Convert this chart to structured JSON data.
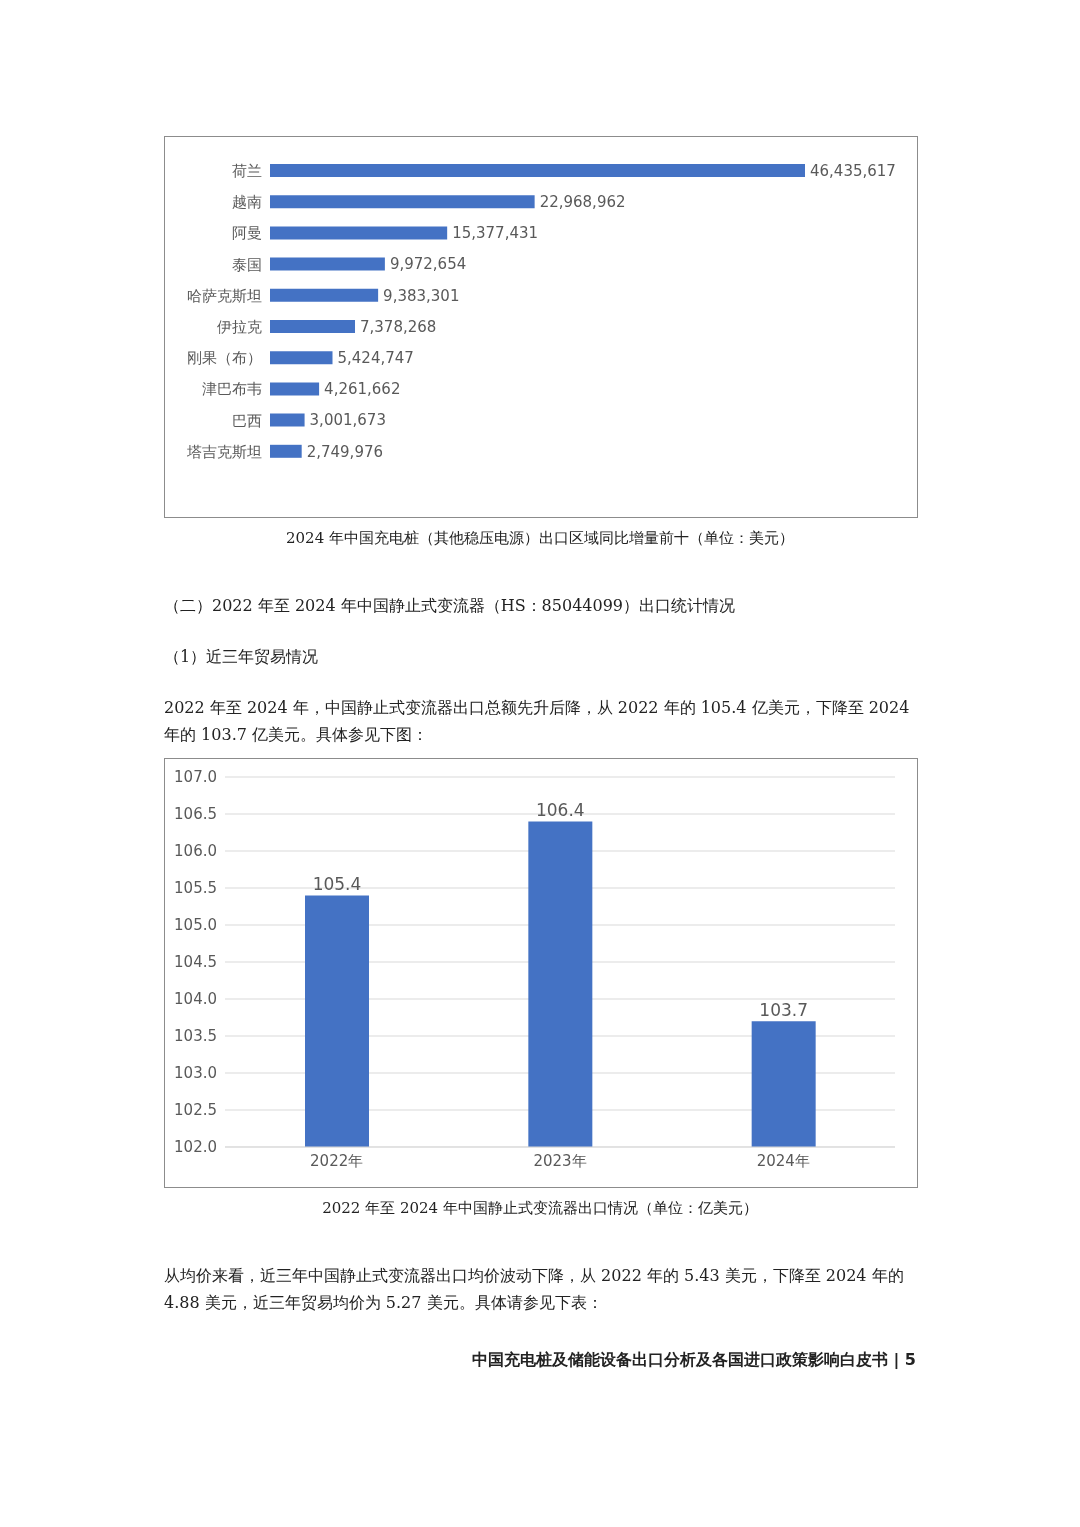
{
  "chart_data": [
    {
      "type": "bar",
      "orientation": "horizontal",
      "categories": [
        "荷兰",
        "越南",
        "阿曼",
        "泰国",
        "哈萨克斯坦",
        "伊拉克",
        "刚果（布）",
        "津巴布韦",
        "巴西",
        "塔吉克斯坦"
      ],
      "values": [
        46435617,
        22968962,
        15377431,
        9972654,
        9383301,
        7378268,
        5424747,
        4261662,
        3001673,
        2749976
      ],
      "color": "#4472c4",
      "value_labels": [
        "46,435,617",
        "22,968,962",
        "15,377,431",
        "9,972,654",
        "9,383,301",
        "7,378,268",
        "5,424,747",
        "4,261,662",
        "3,001,673",
        "2,749,976"
      ],
      "tick_labels": "y",
      "annotations": [
        "2024 年中国充电桩（其他稳压电源）出口区域同比增量前十（单位：美元）",
        "（二）2022 年至 2024 年中国静止式变流器（HS：85044099）出口统计情况",
        "（1）近三年贸易情况",
        "2022 年至 2024 年，中国静止式变流器出口总额先升后降，从 2022 年的 105.4 亿美元，下降至 2024 年的 103.7 亿美元。具体参见下图："
      ]
    },
    {
      "type": "bar",
      "categories": [
        "2022年",
        "2023年",
        "2024年"
      ],
      "values": [
        105.4,
        106.4,
        103.7
      ],
      "color": "#4472c4",
      "ylim": [
        102,
        107
      ],
      "yticks": [
        {
          "value": 102,
          "label": "102.0"
        },
        {
          "value": 102.5,
          "label": "102.5"
        },
        {
          "value": 103,
          "label": "103.0"
        },
        {
          "value": 103.5,
          "label": "103.5"
        },
        {
          "value": 104,
          "label": "104.0"
        },
        {
          "value": 104.5,
          "label": "104.5"
        },
        {
          "value": 105,
          "label": "105.0"
        },
        {
          "value": 105.5,
          "label": "105.5"
        },
        {
          "value": 106,
          "label": "106.0"
        },
        {
          "value": 106.5,
          "label": "106.5"
        },
        {
          "value": 107,
          "label": "107.0"
        }
      ],
      "data_labels": true,
      "grid": "y",
      "annotations": [
        "2022 年至 2024 年中国静止式变流器出口情况（单位：亿美元）",
        "从均价来看，近三年中国静止式变流器出口均价波动下降，从 2022 年的 5.43 美元，下降至 2024 年的 4.88 美元，近三年贸易均价为 5.27 美元。具体请参见下表：",
        "中国充电桩及储能设备出口分析及各国进口政策影响白皮书 | 5"
      ]
    }
  ]
}
